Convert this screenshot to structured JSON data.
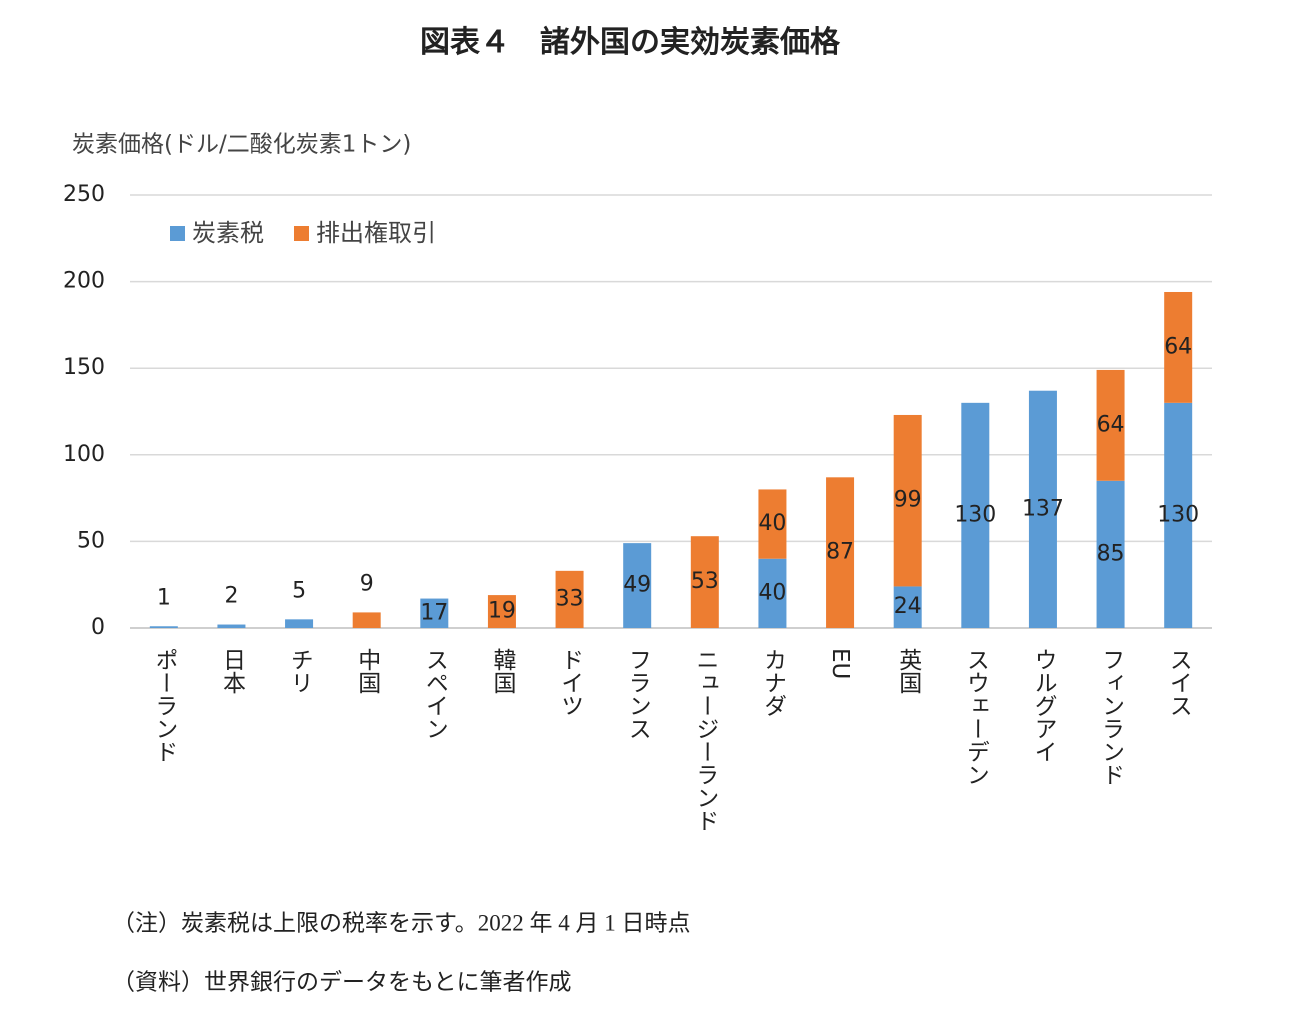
{
  "chart_data": {
    "type": "bar",
    "stacked": true,
    "title": "図表４　諸外国の実効炭素価格",
    "y_label": "炭素価格(ドル/二酸化炭素1トン)",
    "categories": [
      "ポーランド",
      "日本",
      "チリ",
      "中国",
      "スペイン",
      "韓国",
      "ドイツ",
      "フランス",
      "ニュージーランド",
      "カナダ",
      "EU",
      "英国",
      "スウェーデン",
      "ウルグアイ",
      "フィンランド",
      "スイス"
    ],
    "series": [
      {
        "name": "炭素税",
        "color": "#5b9bd5",
        "values": [
          1,
          2,
          5,
          null,
          17,
          null,
          null,
          49,
          null,
          40,
          null,
          24,
          130,
          137,
          85,
          130
        ]
      },
      {
        "name": "排出権取引",
        "color": "#ed7d31",
        "values": [
          null,
          null,
          null,
          9,
          null,
          19,
          33,
          null,
          53,
          40,
          87,
          99,
          null,
          null,
          64,
          64
        ]
      }
    ],
    "ylim": [
      0,
      250
    ],
    "yticks": [
      0,
      50,
      100,
      150,
      200,
      250
    ],
    "grid": true,
    "notes": [
      "（注）炭素税は上限の税率を示す。2022 年 4 月 1 日時点",
      "（資料）世界銀行のデータをもとに筆者作成"
    ]
  }
}
